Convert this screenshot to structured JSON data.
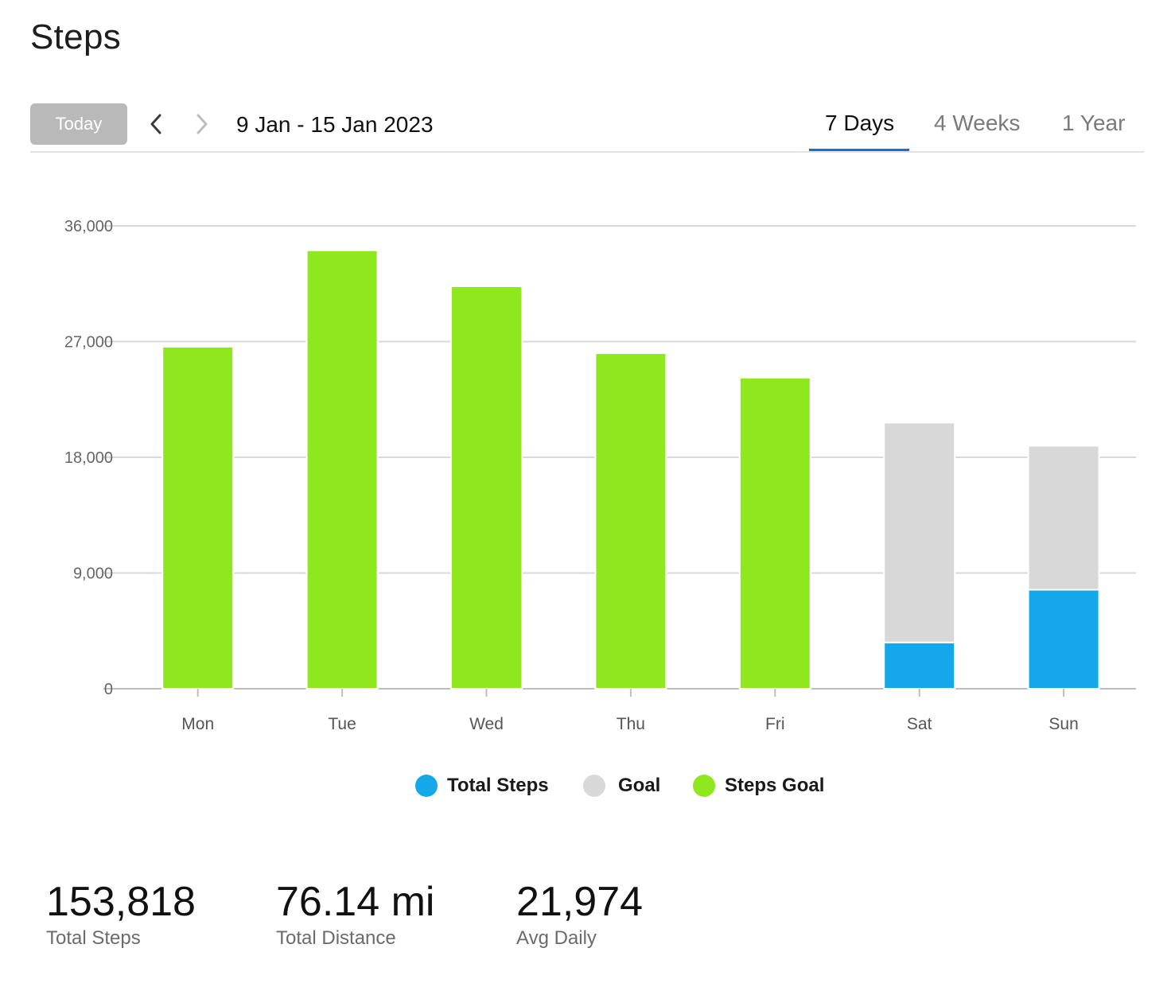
{
  "page": {
    "title": "Steps"
  },
  "toolbar": {
    "today_label": "Today",
    "date_range": "9 Jan - 15 Jan 2023",
    "tabs": [
      {
        "label": "7 Days",
        "active": true
      },
      {
        "label": "4 Weeks",
        "active": false
      },
      {
        "label": "1 Year",
        "active": false
      }
    ],
    "icons": {
      "prev": "chevron-left-icon",
      "next": "chevron-right-icon"
    }
  },
  "chart_data": {
    "type": "bar",
    "stacked": true,
    "categories": [
      "Mon",
      "Tue",
      "Wed",
      "Thu",
      "Fri",
      "Sat",
      "Sun"
    ],
    "series": [
      {
        "name": "Total Steps",
        "color": "#14a8ea",
        "values": [
          0,
          0,
          0,
          0,
          0,
          3600,
          7700
        ]
      },
      {
        "name": "Goal",
        "color": "#d8d8d8",
        "values": [
          0,
          0,
          0,
          0,
          0,
          17100,
          11200
        ]
      },
      {
        "name": "Steps Goal",
        "color": "#8ee81d",
        "values": [
          26600,
          34100,
          31300,
          26100,
          24200,
          0,
          0
        ]
      }
    ],
    "yticks": [
      "0",
      "9,000",
      "18,000",
      "27,000",
      "36,000"
    ],
    "ylim": [
      0,
      36000
    ],
    "grid": true,
    "legend_position": "bottom-center"
  },
  "legend": [
    {
      "label": "Total Steps",
      "color": "#14a8ea"
    },
    {
      "label": "Goal",
      "color": "#d8d8d8"
    },
    {
      "label": "Steps Goal",
      "color": "#8ee81d"
    }
  ],
  "stats": [
    {
      "value": "153,818",
      "label": "Total Steps"
    },
    {
      "value": "76.14 mi",
      "label": "Total Distance"
    },
    {
      "value": "21,974",
      "label": "Avg Daily"
    }
  ]
}
